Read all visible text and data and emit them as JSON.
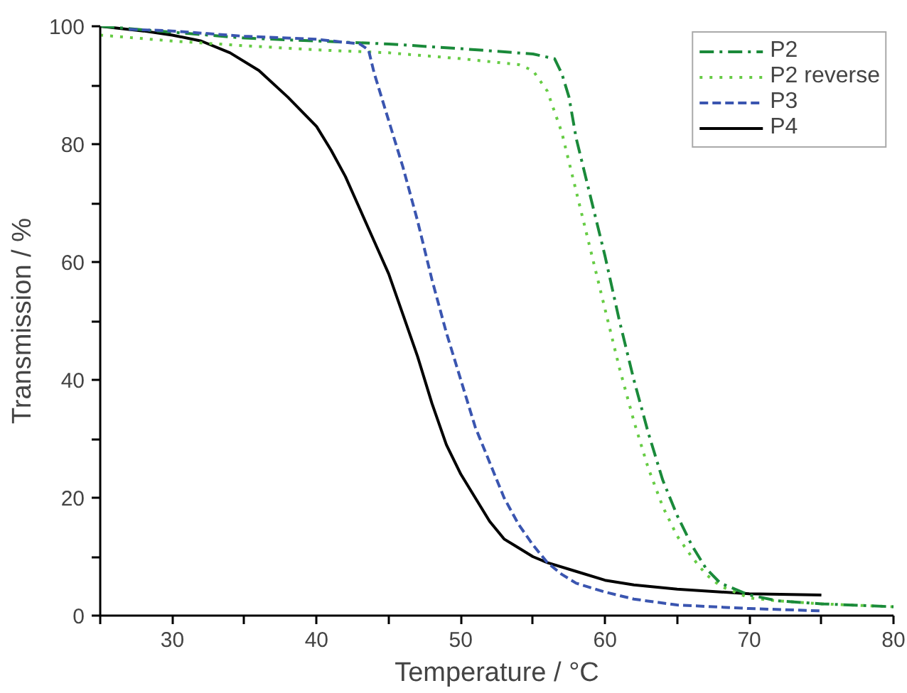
{
  "chart_data": {
    "type": "line",
    "xlabel": "Temperature / °C",
    "ylabel": "Transmission / %",
    "xlim": [
      25,
      80
    ],
    "ylim": [
      0,
      100
    ],
    "xticks": [
      {
        "value": 25,
        "label": null
      },
      30,
      {
        "value": 35,
        "label": null
      },
      40,
      {
        "value": 45,
        "label": null
      },
      50,
      {
        "value": 55,
        "label": null
      },
      60,
      {
        "value": 65,
        "label": null
      },
      70,
      {
        "value": 75,
        "label": null
      },
      80
    ],
    "yticks": [
      0,
      {
        "value": 10,
        "label": null
      },
      20,
      {
        "value": 30,
        "label": null
      },
      40,
      {
        "value": 50,
        "label": null
      },
      60,
      {
        "value": 70,
        "label": null
      },
      80,
      {
        "value": 90,
        "label": null
      },
      100
    ],
    "grid": false,
    "legend": "top right",
    "marker": "none",
    "series": [
      {
        "name": "P2",
        "color": "#1a8a3a",
        "line_style": "dashdot",
        "x": [
          25,
          30,
          35,
          40,
          45,
          50,
          55,
          56.5,
          57,
          57.5,
          58,
          59,
          60,
          61,
          62,
          63,
          64,
          65,
          66,
          67,
          68,
          70,
          72,
          75,
          80
        ],
        "values": [
          100,
          99,
          98,
          97.5,
          97,
          96.2,
          95.3,
          94.5,
          92,
          88,
          81,
          71,
          61,
          50,
          40,
          31,
          23,
          17,
          12,
          8,
          5.5,
          3.5,
          2.5,
          2,
          1.5
        ]
      },
      {
        "name": "P2 reverse",
        "color": "#66cc44",
        "line_style": "dotted",
        "x": [
          25,
          30,
          35,
          40,
          45,
          50,
          54,
          55,
          56,
          57,
          58,
          59,
          60,
          61,
          62,
          63,
          64,
          65,
          66,
          67,
          68,
          70,
          72,
          75,
          80
        ],
        "values": [
          98.5,
          97.5,
          96.7,
          96,
          95.5,
          94.5,
          93.5,
          92.5,
          89,
          82,
          72,
          62,
          52,
          42,
          33,
          25,
          18.5,
          13.5,
          10,
          7,
          5,
          3,
          2.5,
          2,
          1.5
        ]
      },
      {
        "name": "P3",
        "color": "#3a55b0",
        "line_style": "dashed",
        "x": [
          27,
          30,
          35,
          40,
          43,
          43.6,
          44,
          45,
          46,
          47,
          48,
          49,
          50,
          51,
          52,
          53,
          54,
          55,
          56,
          57,
          58,
          60,
          62,
          65,
          70,
          75
        ],
        "values": [
          99.5,
          99.2,
          98.3,
          97.8,
          97,
          96,
          92,
          84,
          76,
          67,
          57,
          48,
          40,
          32,
          26,
          20,
          15.5,
          12,
          9,
          7,
          5.5,
          4,
          2.8,
          1.8,
          1.2,
          0.8
        ]
      },
      {
        "name": "P4",
        "color": "#000000",
        "line_style": "solid",
        "x": [
          25,
          28,
          30,
          32,
          34,
          36,
          38,
          40,
          41,
          42,
          43,
          44,
          45,
          46,
          47,
          48,
          49,
          50,
          51,
          52,
          53,
          54,
          55,
          56,
          58,
          60,
          62,
          65,
          70,
          75
        ],
        "values": [
          100,
          99.2,
          98.5,
          97.5,
          95.5,
          92.5,
          88,
          83,
          79,
          74.5,
          69,
          63.5,
          58,
          51,
          44,
          36,
          29,
          24,
          20,
          16,
          13,
          11.5,
          10,
          9,
          7.5,
          6,
          5.2,
          4.5,
          3.7,
          3.5
        ]
      }
    ]
  }
}
